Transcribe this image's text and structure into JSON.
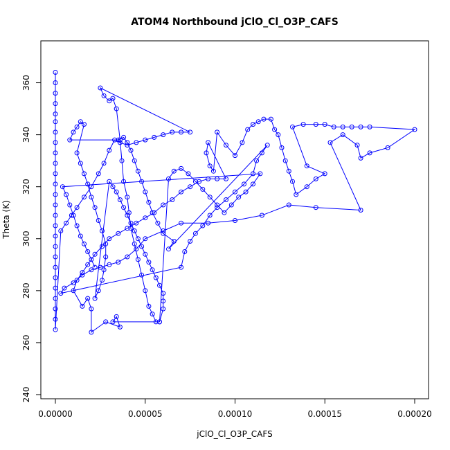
{
  "chart_data": {
    "type": "scatter",
    "title": "ATOM4 Northbound jClO_Cl_O3P_CAFS",
    "xlabel": "jClO_Cl_O3P_CAFS",
    "ylabel": "Theta (K)",
    "xlim": [
      0,
      0.0002
    ],
    "ylim": [
      240,
      370
    ],
    "x_ticks": [
      0,
      5e-05,
      0.0001,
      0.00015,
      0.0002
    ],
    "x_tick_labels": [
      "0.00000",
      "0.00005",
      "0.00010",
      "0.00015",
      "0.00020"
    ],
    "y_ticks": [
      240,
      260,
      280,
      300,
      320,
      340,
      360
    ],
    "y_tick_labels": [
      "240",
      "260",
      "280",
      "300",
      "320",
      "340",
      "360"
    ],
    "grid": false,
    "legend": "none",
    "series": [
      {
        "color": "#0000ff",
        "marker": "open-circle",
        "connected": true,
        "points": [
          [
            0.0,
            364
          ],
          [
            0.0,
            360
          ],
          [
            0.0,
            356
          ],
          [
            0.0,
            352
          ],
          [
            0.0,
            348
          ],
          [
            0.0,
            345
          ],
          [
            0.0,
            341
          ],
          [
            0.0,
            337
          ],
          [
            0.0,
            333
          ],
          [
            0.0,
            329
          ],
          [
            0.0,
            325
          ],
          [
            0.0,
            321
          ],
          [
            0.0,
            317
          ],
          [
            0.0,
            313
          ],
          [
            0.0,
            309
          ],
          [
            0.0,
            305
          ],
          [
            0.0,
            301
          ],
          [
            0.0,
            297
          ],
          [
            0.0,
            293
          ],
          [
            0.0,
            289
          ],
          [
            0.0,
            285
          ],
          [
            0.0,
            281
          ],
          [
            0.0,
            277
          ],
          [
            0.0,
            273
          ],
          [
            0.0,
            269
          ],
          [
            0.0,
            265
          ],
          [
            3e-06,
            303
          ],
          [
            6e-06,
            306
          ],
          [
            9e-06,
            309
          ],
          [
            1.2e-05,
            312
          ],
          [
            1.6e-05,
            316
          ],
          [
            2e-05,
            320
          ],
          [
            2.4e-05,
            325
          ],
          [
            2.7e-05,
            329
          ],
          [
            3e-05,
            334
          ],
          [
            3.3e-05,
            338
          ],
          [
            3.6e-05,
            337
          ],
          [
            4e-05,
            336
          ],
          [
            4.5e-05,
            337
          ],
          [
            5e-05,
            338
          ],
          [
            5.5e-05,
            339
          ],
          [
            6e-05,
            340
          ],
          [
            6.5e-05,
            341
          ],
          [
            7e-05,
            341
          ],
          [
            7.5e-05,
            341
          ],
          [
            2.5e-05,
            358
          ],
          [
            2.7e-05,
            355
          ],
          [
            3e-05,
            353
          ],
          [
            3.2e-05,
            354
          ],
          [
            3.4e-05,
            350
          ],
          [
            3.6e-05,
            338
          ],
          [
            3.7e-05,
            330
          ],
          [
            3.8e-05,
            322
          ],
          [
            4e-05,
            316
          ],
          [
            4.1e-05,
            310
          ],
          [
            4.2e-05,
            304
          ],
          [
            4.4e-05,
            298
          ],
          [
            4.6e-05,
            292
          ],
          [
            4.8e-05,
            286
          ],
          [
            5e-05,
            280
          ],
          [
            5.2e-05,
            274
          ],
          [
            5.4e-05,
            271
          ],
          [
            5.6e-05,
            268
          ],
          [
            5.8e-05,
            268
          ],
          [
            3.2e-05,
            268
          ],
          [
            3.4e-05,
            270
          ],
          [
            3.6e-05,
            266
          ],
          [
            2.8e-05,
            268
          ],
          [
            2e-05,
            264
          ],
          [
            2e-05,
            273
          ],
          [
            1.8e-05,
            277
          ],
          [
            1.5e-05,
            274
          ],
          [
            1e-05,
            280
          ],
          [
            1.2e-05,
            284
          ],
          [
            1.5e-05,
            287
          ],
          [
            1.8e-05,
            290
          ],
          [
            2.2e-05,
            294
          ],
          [
            2.6e-05,
            297
          ],
          [
            3e-05,
            300
          ],
          [
            3.5e-05,
            302
          ],
          [
            4e-05,
            304
          ],
          [
            4.5e-05,
            306
          ],
          [
            5e-05,
            308
          ],
          [
            5.5e-05,
            310
          ],
          [
            6e-05,
            313
          ],
          [
            6.5e-05,
            315
          ],
          [
            7e-05,
            318
          ],
          [
            7.5e-05,
            320
          ],
          [
            8e-05,
            322
          ],
          [
            8.5e-05,
            323
          ],
          [
            9e-05,
            323
          ],
          [
            9.5e-05,
            323
          ],
          [
            8.5e-05,
            337
          ],
          [
            8.4e-05,
            333
          ],
          [
            8.6e-05,
            328
          ],
          [
            8.8e-05,
            326
          ],
          [
            9e-05,
            341
          ],
          [
            9.5e-05,
            336
          ],
          [
            0.0001,
            332
          ],
          [
            0.000104,
            337
          ],
          [
            0.000107,
            342
          ],
          [
            0.00011,
            344
          ],
          [
            0.000113,
            345
          ],
          [
            0.000116,
            346
          ],
          [
            0.00012,
            346
          ],
          [
            0.000122,
            342
          ],
          [
            0.000124,
            340
          ],
          [
            0.000126,
            335
          ],
          [
            0.000128,
            330
          ],
          [
            0.00013,
            326
          ],
          [
            0.000132,
            322
          ],
          [
            0.000134,
            317
          ],
          [
            0.00014,
            320
          ],
          [
            0.000145,
            323
          ],
          [
            0.00015,
            325
          ],
          [
            0.00014,
            328
          ],
          [
            0.000132,
            343
          ],
          [
            0.000138,
            344
          ],
          [
            0.000145,
            344
          ],
          [
            0.00015,
            344
          ],
          [
            0.000155,
            343
          ],
          [
            0.00016,
            343
          ],
          [
            0.000165,
            343
          ],
          [
            0.00017,
            343
          ],
          [
            0.000175,
            343
          ],
          [
            0.0002,
            342
          ],
          [
            0.000185,
            335
          ],
          [
            0.000175,
            333
          ],
          [
            0.00017,
            331
          ],
          [
            0.000168,
            336
          ],
          [
            0.00016,
            340
          ],
          [
            0.000153,
            337
          ],
          [
            0.00017,
            311
          ],
          [
            0.000145,
            312
          ],
          [
            0.00013,
            313
          ],
          [
            0.000115,
            309
          ],
          [
            0.0001,
            307
          ],
          [
            8.5e-05,
            306
          ],
          [
            7e-05,
            306
          ],
          [
            6e-05,
            303
          ],
          [
            5e-05,
            300
          ],
          [
            4.5e-05,
            296
          ],
          [
            4e-05,
            293
          ],
          [
            3.5e-05,
            291
          ],
          [
            3e-05,
            290
          ],
          [
            2.5e-05,
            289
          ],
          [
            2e-05,
            288
          ],
          [
            1.5e-05,
            286
          ],
          [
            1e-05,
            283
          ],
          [
            5e-06,
            281
          ],
          [
            3e-06,
            279
          ],
          [
            7e-05,
            289
          ],
          [
            7.2e-05,
            295
          ],
          [
            7.5e-05,
            299
          ],
          [
            7.8e-05,
            302
          ],
          [
            8.2e-05,
            305
          ],
          [
            8.6e-05,
            309
          ],
          [
            9e-05,
            312
          ],
          [
            9.5e-05,
            315
          ],
          [
            0.0001,
            318
          ],
          [
            0.000105,
            321
          ],
          [
            0.00011,
            325
          ],
          [
            0.000112,
            330
          ],
          [
            0.000115,
            333
          ],
          [
            0.000118,
            336
          ],
          [
            6.3e-05,
            296
          ],
          [
            6.6e-05,
            299
          ],
          [
            6e-05,
            302
          ],
          [
            5.7e-05,
            306
          ],
          [
            5.4e-05,
            310
          ],
          [
            5.2e-05,
            314
          ],
          [
            5e-05,
            318
          ],
          [
            4.8e-05,
            322
          ],
          [
            4.6e-05,
            326
          ],
          [
            4.4e-05,
            330
          ],
          [
            4.2e-05,
            334
          ],
          [
            4e-05,
            337
          ],
          [
            3.8e-05,
            339
          ],
          [
            3.5e-05,
            338
          ],
          [
            8e-06,
            338
          ],
          [
            1e-05,
            341
          ],
          [
            1.2e-05,
            343
          ],
          [
            1.4e-05,
            345
          ],
          [
            1.6e-05,
            344
          ],
          [
            1.2e-05,
            333
          ],
          [
            1.4e-05,
            329
          ],
          [
            1.6e-05,
            325
          ],
          [
            1.8e-05,
            321
          ],
          [
            2e-05,
            316
          ],
          [
            2.2e-05,
            312
          ],
          [
            2.4e-05,
            307
          ],
          [
            2.6e-05,
            303
          ],
          [
            2.8e-05,
            298
          ],
          [
            2.8e-05,
            293
          ],
          [
            2.7e-05,
            288
          ],
          [
            2.6e-05,
            284
          ],
          [
            2.4e-05,
            280
          ],
          [
            2.2e-05,
            277
          ],
          [
            3e-05,
            322
          ],
          [
            3.2e-05,
            320
          ],
          [
            3.4e-05,
            318
          ],
          [
            3.6e-05,
            315
          ],
          [
            3.8e-05,
            312
          ],
          [
            4e-05,
            309
          ],
          [
            4.2e-05,
            306
          ],
          [
            4.4e-05,
            303
          ],
          [
            4.6e-05,
            300
          ],
          [
            4.8e-05,
            297
          ],
          [
            5e-05,
            294
          ],
          [
            5.2e-05,
            291
          ],
          [
            5.4e-05,
            288
          ],
          [
            5.6e-05,
            285
          ],
          [
            5.8e-05,
            282
          ],
          [
            6e-05,
            279
          ],
          [
            6e-05,
            276
          ],
          [
            6e-05,
            273
          ],
          [
            5.8e-05,
            268
          ],
          [
            6.3e-05,
            323
          ],
          [
            6.6e-05,
            326
          ],
          [
            7e-05,
            327
          ],
          [
            7.4e-05,
            325
          ],
          [
            7.8e-05,
            322
          ],
          [
            8.2e-05,
            319
          ],
          [
            8.6e-05,
            316
          ],
          [
            9e-05,
            313
          ],
          [
            9.4e-05,
            310
          ],
          [
            9.8e-05,
            313
          ],
          [
            0.000102,
            316
          ],
          [
            0.000106,
            318
          ],
          [
            0.00011,
            321
          ],
          [
            0.000114,
            325
          ],
          [
            4e-06,
            320
          ],
          [
            6e-06,
            317
          ],
          [
            8e-06,
            313
          ],
          [
            1e-05,
            309
          ],
          [
            1.2e-05,
            305
          ],
          [
            1.4e-05,
            301
          ],
          [
            1.6e-05,
            298
          ],
          [
            1.8e-05,
            295
          ],
          [
            2e-05,
            292
          ],
          [
            2.2e-05,
            289
          ]
        ]
      }
    ]
  }
}
